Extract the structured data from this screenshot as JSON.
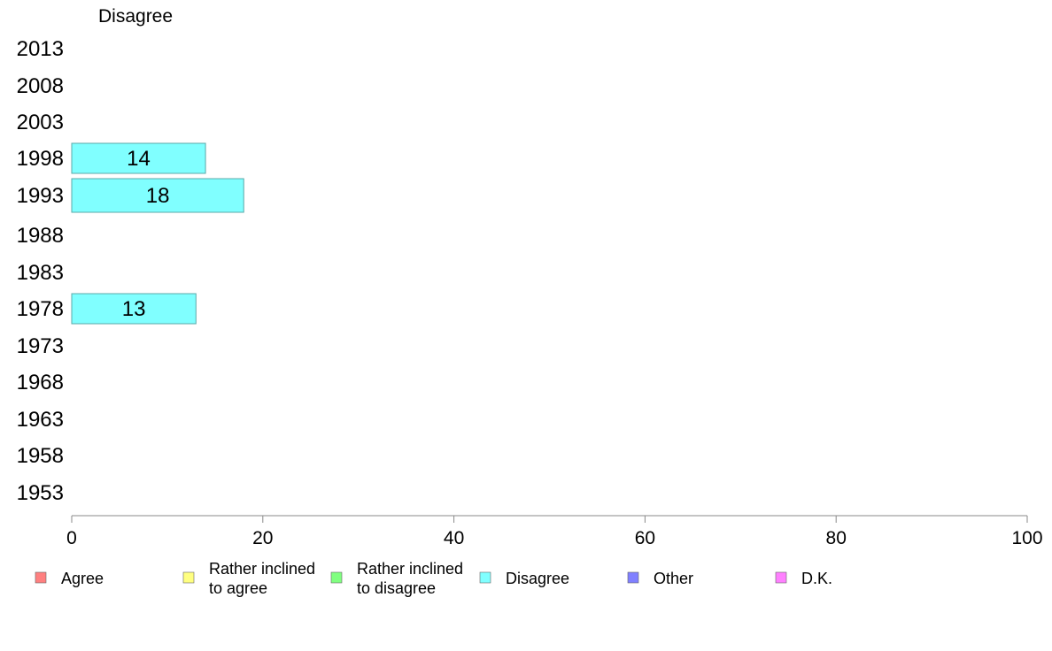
{
  "chart_data": {
    "type": "bar",
    "orientation": "horizontal",
    "title": "Disagree",
    "categories": [
      "2013",
      "2008",
      "2003",
      "1998",
      "1993",
      "1988",
      "1983",
      "1978",
      "1973",
      "1968",
      "1963",
      "1958",
      "1953"
    ],
    "series": [
      {
        "name": "Disagree",
        "color": "#80ffff",
        "values": [
          null,
          null,
          null,
          14,
          18,
          null,
          null,
          13,
          null,
          null,
          null,
          null,
          null
        ]
      }
    ],
    "xlim": [
      0,
      100
    ],
    "xticks": [
      "0",
      "20",
      "40",
      "60",
      "80",
      "100"
    ],
    "grid": false,
    "legend": {
      "placement": "bottom",
      "items": [
        {
          "lines": [
            "Agree"
          ],
          "color": "#ff8080"
        },
        {
          "lines": [
            "Rather inclined",
            "to agree"
          ],
          "color": "#ffff80"
        },
        {
          "lines": [
            "Rather inclined",
            "to disagree"
          ],
          "color": "#80ff80"
        },
        {
          "lines": [
            "Disagree"
          ],
          "color": "#80ffff"
        },
        {
          "lines": [
            "Other"
          ],
          "color": "#8080ff"
        },
        {
          "lines": [
            "D.K."
          ],
          "color": "#ff80ff"
        }
      ]
    }
  }
}
